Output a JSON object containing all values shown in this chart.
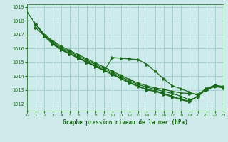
{
  "background_color": "#ceeaea",
  "grid_color": "#a8d0d0",
  "line_color": "#1a6b1a",
  "xlabel": "Graphe pression niveau de la mer (hPa)",
  "xlim": [
    0,
    23
  ],
  "ylim": [
    1011.5,
    1019.2
  ],
  "yticks": [
    1012,
    1013,
    1014,
    1015,
    1016,
    1017,
    1018,
    1019
  ],
  "xticks": [
    0,
    1,
    2,
    3,
    4,
    5,
    6,
    7,
    8,
    9,
    10,
    11,
    12,
    13,
    14,
    15,
    16,
    17,
    18,
    19,
    20,
    21,
    22,
    23
  ],
  "lines": [
    [
      1018.6,
      null,
      1017.75,
      1017.0,
      1016.55,
      1016.15,
      1015.85,
      1015.55,
      1015.25,
      1014.95,
      1014.65,
      1014.35,
      1014.05,
      1013.75,
      1013.5,
      1013.3,
      1013.15,
      1013.05,
      1012.9,
      1012.8,
      1012.75,
      1012.7,
      1013.1,
      1013.3,
      1013.2
    ],
    [
      null,
      null,
      1017.75,
      1017.0,
      1016.45,
      1016.05,
      1015.75,
      1015.45,
      1015.15,
      1014.85,
      1014.55,
      1014.25,
      1013.95,
      1013.65,
      1013.4,
      1013.2,
      1013.05,
      1012.9,
      1012.75,
      1012.55,
      1012.3,
      1012.5,
      1013.1,
      1013.35,
      1013.25
    ],
    [
      null,
      null,
      1017.75,
      1016.95,
      1016.4,
      1015.95,
      1015.65,
      1015.35,
      1015.05,
      1014.75,
      1014.45,
      1014.15,
      1013.85,
      1013.55,
      1013.3,
      1013.05,
      1012.95,
      1012.75,
      1012.55,
      1012.35,
      1012.2,
      1012.55,
      1013.05,
      1013.3,
      1013.2
    ],
    [
      null,
      null,
      1017.75,
      1016.9,
      1016.35,
      1015.9,
      1015.6,
      1015.3,
      1015.0,
      1014.7,
      1014.4,
      1014.1,
      1013.8,
      1013.5,
      1013.25,
      1013.0,
      1012.9,
      1012.7,
      1012.5,
      1012.3,
      1012.15,
      1012.6,
      1013.0,
      1013.25,
      1013.15
    ],
    [
      null,
      null,
      1017.5,
      1016.9,
      1016.3,
      1015.9,
      1015.6,
      1015.3,
      1015.0,
      1014.7,
      1014.4,
      1015.35,
      1015.3,
      1015.25,
      1015.2,
      1014.85,
      1014.35,
      1013.8,
      1013.3,
      1013.1,
      1012.85,
      1012.6,
      1013.05,
      1013.35,
      1013.2
    ]
  ]
}
